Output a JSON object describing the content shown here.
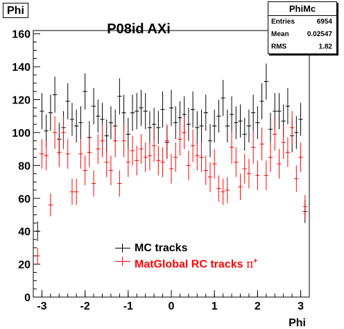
{
  "histogram_title": "Phi",
  "plot_title": "P08id AXi",
  "stats": {
    "name": "PhiMc",
    "rows": [
      {
        "label": "Entries",
        "value": "6954"
      },
      {
        "label": "Mean",
        "value": "0.02547"
      },
      {
        "label": "RMS",
        "value": "1.82"
      }
    ]
  },
  "legend": {
    "mc": "MC tracks",
    "rc_prefix": "MatGlobal RC tracks ",
    "rc_particle": "π",
    "rc_sup": "+"
  },
  "colors": {
    "mc": "#000000",
    "rc": "#ff0000"
  },
  "chart_data": {
    "type": "scatter",
    "xlabel": "Phi",
    "ylabel": "",
    "xlim": [
      -3.2,
      3.2
    ],
    "ylim": [
      0,
      162
    ],
    "xticks": [
      -3,
      -2,
      -1,
      0,
      1,
      2,
      3
    ],
    "yticks": [
      0,
      20,
      40,
      60,
      80,
      100,
      120,
      140,
      160
    ],
    "grid": false,
    "legend_position": "bottom-center",
    "x": [
      -3.1,
      -3.0,
      -2.9,
      -2.8,
      -2.7,
      -2.6,
      -2.5,
      -2.4,
      -2.3,
      -2.2,
      -2.1,
      -2.0,
      -1.9,
      -1.8,
      -1.7,
      -1.6,
      -1.5,
      -1.4,
      -1.3,
      -1.2,
      -1.1,
      -1.0,
      -0.9,
      -0.8,
      -0.7,
      -0.6,
      -0.5,
      -0.4,
      -0.3,
      -0.2,
      -0.1,
      0.0,
      0.1,
      0.2,
      0.3,
      0.4,
      0.5,
      0.6,
      0.7,
      0.8,
      0.9,
      1.0,
      1.1,
      1.2,
      1.3,
      1.4,
      1.5,
      1.6,
      1.7,
      1.8,
      1.9,
      2.0,
      2.1,
      2.2,
      2.3,
      2.4,
      2.5,
      2.6,
      2.7,
      2.8,
      2.9,
      3.0,
      3.1
    ],
    "series": [
      {
        "name": "MC tracks",
        "values": [
          40,
          113,
          101,
          112,
          123,
          96,
          103,
          119,
          108,
          104,
          106,
          125,
          97,
          116,
          110,
          108,
          98,
          106,
          104,
          122,
          112,
          99,
          112,
          113,
          115,
          113,
          103,
          105,
          103,
          114,
          94,
          115,
          106,
          109,
          111,
          105,
          114,
          103,
          104,
          112,
          95,
          104,
          110,
          121,
          104,
          111,
          106,
          107,
          99,
          104,
          112,
          106,
          119,
          131,
          102,
          113,
          113,
          107,
          116,
          98,
          100,
          108,
          52
        ],
        "errors": [
          6,
          11,
          10,
          11,
          11,
          10,
          10,
          11,
          10,
          10,
          10,
          11,
          10,
          11,
          10,
          10,
          10,
          10,
          10,
          11,
          11,
          10,
          11,
          11,
          11,
          11,
          10,
          10,
          10,
          11,
          10,
          11,
          10,
          10,
          11,
          10,
          11,
          10,
          10,
          11,
          10,
          10,
          10,
          11,
          10,
          11,
          10,
          10,
          10,
          10,
          11,
          10,
          11,
          11,
          10,
          11,
          11,
          10,
          11,
          10,
          10,
          10,
          7
        ]
      },
      {
        "name": "MatGlobal RC tracks π+",
        "values": [
          25,
          87,
          86,
          56,
          100,
          88,
          100,
          87,
          64,
          64,
          87,
          77,
          88,
          69,
          90,
          95,
          82,
          77,
          95,
          69,
          95,
          82,
          89,
          83,
          90,
          85,
          86,
          92,
          83,
          82,
          95,
          78,
          85,
          96,
          100,
          80,
          92,
          86,
          85,
          77,
          73,
          81,
          66,
          64,
          65,
          91,
          82,
          67,
          78,
          75,
          91,
          74,
          93,
          74,
          85,
          99,
          81,
          94,
          88,
          103,
          72,
          85,
          55
        ],
        "errors": [
          5,
          9,
          9,
          7,
          10,
          9,
          10,
          9,
          8,
          8,
          9,
          9,
          9,
          8,
          9,
          10,
          9,
          9,
          10,
          8,
          10,
          9,
          9,
          9,
          9,
          9,
          9,
          10,
          9,
          9,
          10,
          9,
          9,
          10,
          10,
          9,
          10,
          9,
          9,
          9,
          9,
          9,
          8,
          8,
          8,
          10,
          9,
          8,
          9,
          9,
          10,
          9,
          10,
          9,
          9,
          10,
          9,
          10,
          9,
          10,
          8,
          9,
          7
        ]
      }
    ]
  }
}
